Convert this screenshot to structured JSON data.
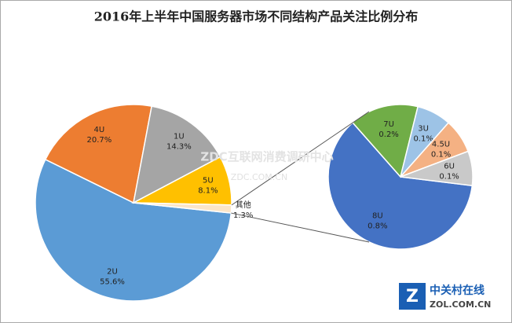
{
  "chart_data": {
    "type": "pie_of_pie",
    "title": "2016年上半年中国服务器市场不同结构产品关注比例分布",
    "categories": [
      "2U",
      "4U",
      "1U",
      "5U",
      "其他"
    ],
    "values": [
      55.6,
      20.7,
      14.3,
      8.1,
      1.3
    ],
    "value_labels": [
      "55.6%",
      "20.7%",
      "14.3%",
      "8.1%",
      "1.3%"
    ],
    "colors": [
      "#5b9bd5",
      "#ed7d31",
      "#a5a5a5",
      "#ffc000",
      "#fbe5c8"
    ],
    "sub_categories": [
      "8U",
      "7U",
      "3U",
      "4.5U",
      "6U"
    ],
    "sub_values": [
      0.8,
      0.2,
      0.1,
      0.1,
      0.1
    ],
    "sub_value_labels": [
      "0.8%",
      "0.2%",
      "0.1%",
      "0.1%",
      "0.1%"
    ],
    "sub_colors": [
      "#4472c4",
      "#70ad47",
      "#9dc3e6",
      "#f4b183",
      "#c9c9c9"
    ],
    "watermark": "ZDC互联网消费调研中心",
    "watermark_url": "ZDC.COM.CN",
    "logo": "中关村在线",
    "logo_url": "ZOL.COM.CN"
  }
}
